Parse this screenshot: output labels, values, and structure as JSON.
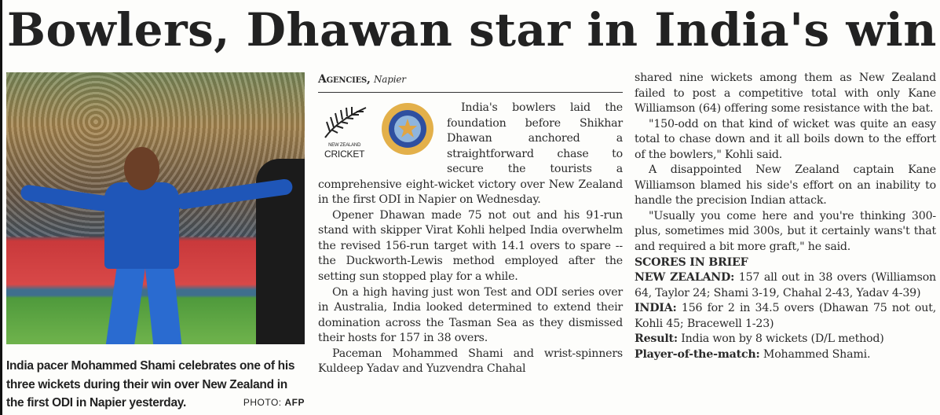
{
  "headline": "Bowlers, Dhawan star in India's win",
  "photo": {
    "caption": "India pacer Mohammed Shami celebrates one of his three wickets during their win over New Zealand in the first ODI in Napier yesterday.",
    "credit_label": "PHOTO:",
    "credit_source": "AFP"
  },
  "byline": {
    "agency": "Agencies,",
    "place": "Napier"
  },
  "logos": {
    "nz_text_small": "NEW ZEALAND",
    "nz_text": "CRICKET",
    "bcci": "BCCI crest"
  },
  "column2": [
    "India's bowlers laid the foundation before Shikhar Dhawan anchored a straightforward chase to secure the tourists a comprehensive eight-wicket victory over New Zealand in the first ODI in Napier on Wednesday.",
    "Opener Dhawan made 75 not out and his 91-run stand with skipper Virat Kohli helped India overwhelm the revised 156-run target with 14.1 overs to spare -- the Duckworth-Lewis method employed after the setting sun stopped play for a while.",
    "On a high having just won Test and ODI series over in Australia, India looked determined to extend their domination across the Tasman Sea as they dismissed their hosts for 157 in 38 overs.",
    "Paceman Mohammed Shami and wrist-spinners Kuldeep Yadav and Yuzvendra Chahal"
  ],
  "column3": [
    "shared nine wickets among them as New Zealand failed to post a competitive total with only Kane Williamson (64) offering some resistance with the bat.",
    "\"150-odd on that kind of wicket was quite an easy total to chase down and it all boils down to the effort of the bowlers,\" Kohli said.",
    "A disappointed New Zealand captain Kane Williamson blamed his side's effort on an inability to handle the precision Indian attack.",
    "\"Usually you come here and you're thinking 300-plus, sometimes mid 300s, but it certainly wans't that and required a bit more graft,\" he said."
  ],
  "scores": {
    "heading": "SCORES IN BRIEF",
    "nz_label": "NEW ZEALAND:",
    "nz_text": "157 all out in 38 overs (Williamson 64, Taylor 24; Shami 3-19, Chahal 2-43, Yadav 4-39)",
    "ind_label": "INDIA:",
    "ind_text": "156 for 2 in 34.5 overs (Dhawan 75 not out, Kohli 45; Bracewell 1-23)",
    "result_label": "Result:",
    "result_text": "India won by 8 wickets (D/L method)",
    "potm_label": "Player-of-the-match:",
    "potm_text": "Mohammed Shami."
  }
}
